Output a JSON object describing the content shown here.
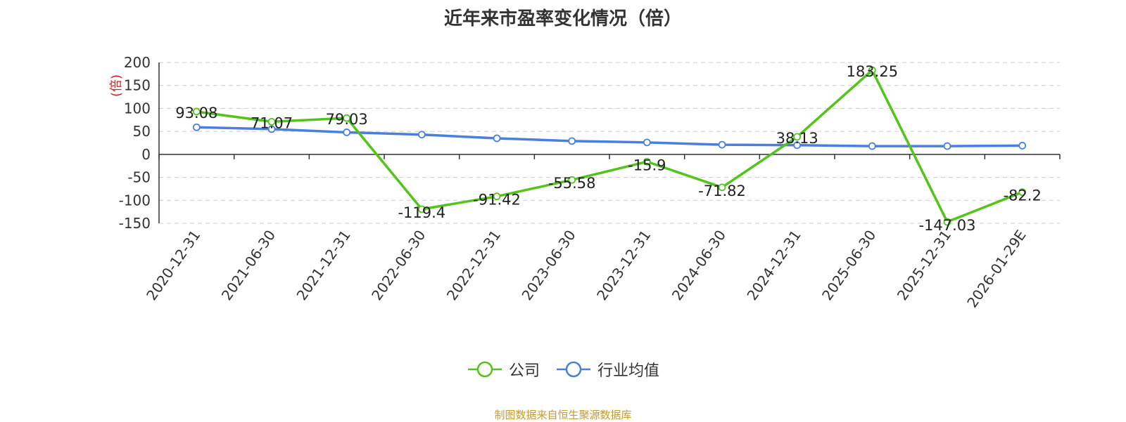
{
  "title": "近年来市盈率变化情况（倍）",
  "source": "制图数据来自恒生聚源数据库",
  "chart_data": {
    "type": "line",
    "title": "近年来市盈率变化情况（倍）",
    "ylabel": "(倍)",
    "xlabel": "",
    "ylim": [
      -150,
      200
    ],
    "yticks": [
      200,
      150,
      100,
      50,
      0,
      -50,
      -100,
      -150
    ],
    "grid": true,
    "legend_position": "bottom",
    "categories": [
      "2020-12-31",
      "2021-06-30",
      "2021-12-31",
      "2022-06-30",
      "2022-12-31",
      "2023-06-30",
      "2023-12-31",
      "2024-06-30",
      "2024-12-31",
      "2025-06-30",
      "2025-12-31",
      "2026-01-29E"
    ],
    "series": [
      {
        "name": "公司",
        "color": "#52c41a",
        "show_labels": true,
        "values": [
          93.08,
          71.07,
          79.03,
          -119.4,
          -91.42,
          -55.58,
          -15.9,
          -71.82,
          38.13,
          183.25,
          -147.03,
          -82.2
        ]
      },
      {
        "name": "行业均值",
        "color": "#4a7fe0",
        "show_labels": false,
        "values": [
          59,
          55,
          48,
          43,
          35,
          29,
          26,
          21,
          20,
          18,
          18,
          19
        ]
      }
    ]
  }
}
